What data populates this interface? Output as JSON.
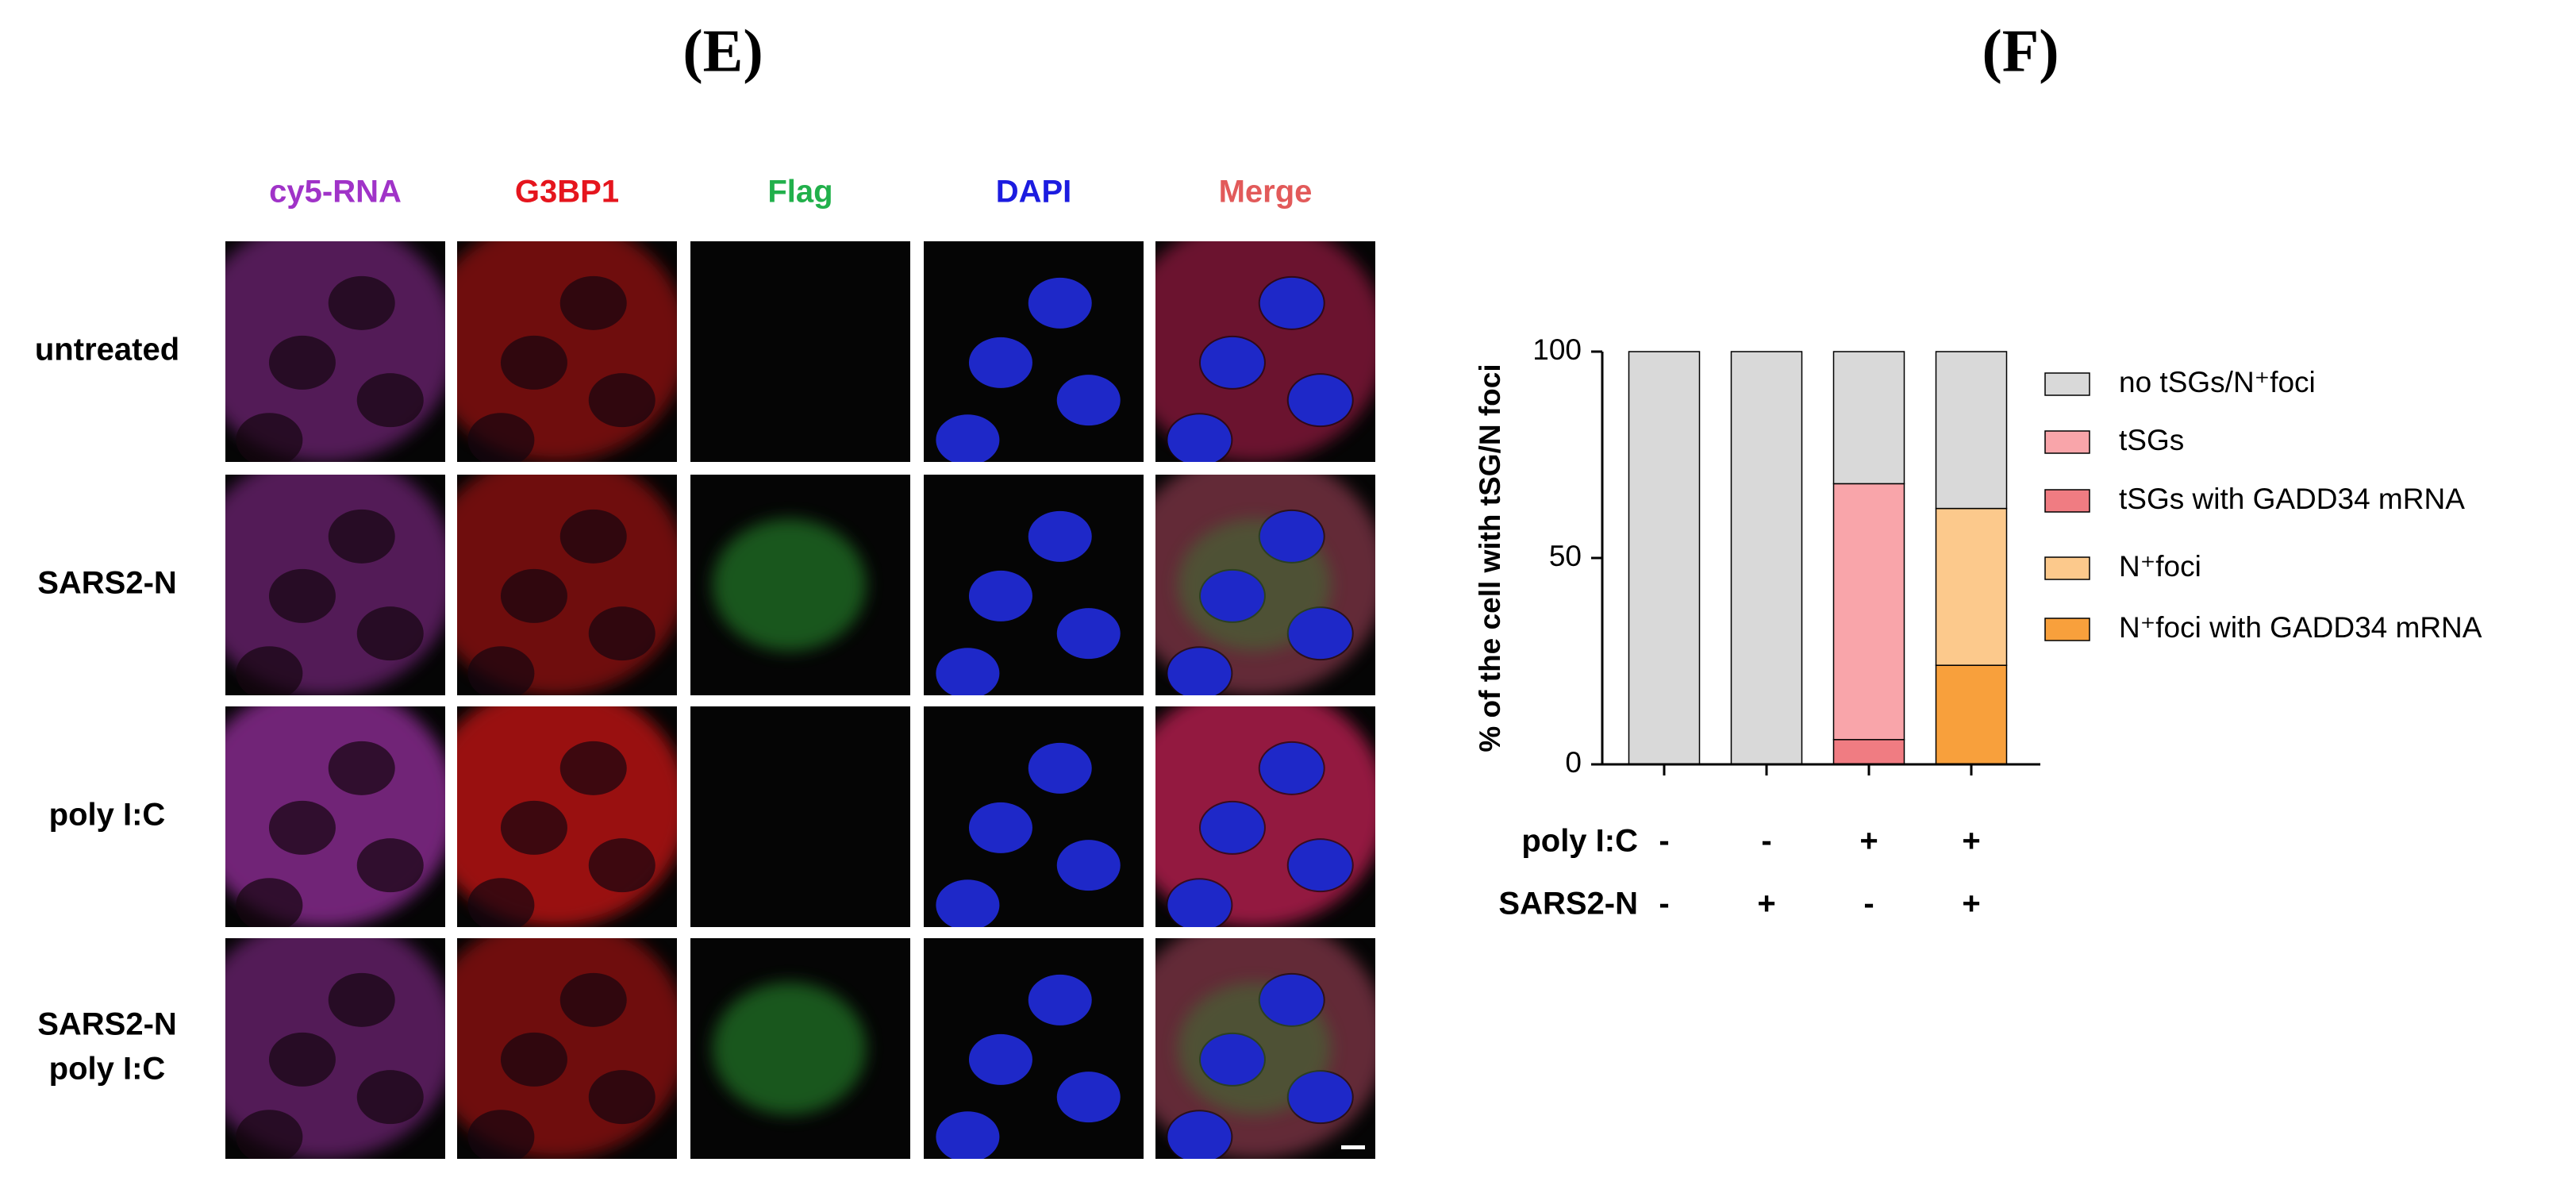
{
  "panel_labels": [
    "(E)",
    "(F)"
  ],
  "microscopy": {
    "columns": [
      {
        "label": "cy5-RNA",
        "color": "#a033c8"
      },
      {
        "label": "G3BP1",
        "color": "#e5151d"
      },
      {
        "label": "Flag",
        "color": "#21b04b"
      },
      {
        "label": "DAPI",
        "color": "#1c1ce0"
      },
      {
        "label": "Merge",
        "color": "#e25a5a"
      }
    ],
    "rows": [
      [
        "untreated"
      ],
      [
        "SARS2-N"
      ],
      [
        "poly I:C"
      ],
      [
        "SARS2-N",
        "poly I:C"
      ]
    ]
  },
  "chart_data": {
    "type": "stacked_bar",
    "ylabel": "% of the cell with tSG/N foci",
    "categories": [
      null,
      null,
      null,
      null
    ],
    "series": [
      {
        "name": "no tSGs/N⁺foci",
        "color": "#d9d9d9",
        "values": [
          100,
          100,
          32,
          38
        ]
      },
      {
        "name": "tSGs",
        "color": "#f9a5aa",
        "values": [
          0,
          0,
          62,
          0
        ]
      },
      {
        "name": "tSGs with GADD34 mRNA",
        "color": "#f07c82",
        "values": [
          0,
          0,
          6,
          0
        ]
      },
      {
        "name": "N⁺foci",
        "color": "#fcc98c",
        "values": [
          0,
          0,
          0,
          38
        ]
      },
      {
        "name": "N⁺foci with GADD34 mRNA",
        "color": "#f8a03c",
        "values": [
          0,
          0,
          0,
          24
        ]
      }
    ],
    "condition_rows": [
      {
        "name": "poly I:C",
        "values": [
          "-",
          "-",
          "+",
          "+"
        ]
      },
      {
        "name": "SARS2-N",
        "values": [
          "-",
          "+",
          "-",
          "+"
        ]
      }
    ],
    "ylim": [
      0,
      100
    ],
    "yticks": [
      0,
      50,
      100
    ],
    "legend": "right"
  }
}
